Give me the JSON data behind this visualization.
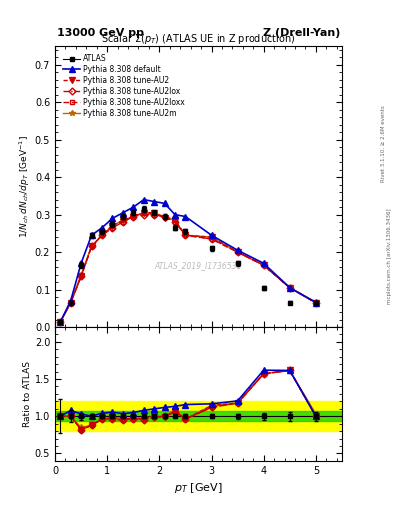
{
  "title_top_left": "13000 GeV pp",
  "title_top_right": "Z (Drell-Yan)",
  "plot_title": "Scalar $\\Sigma(p_T)$ (ATLAS UE in Z production)",
  "watermark": "ATLAS_2019_I1736531",
  "right_label": "Rivet 3.1.10, ≥ 2.6M events",
  "right_label2": "mcplots.cern.ch [arXiv:1306.3436]",
  "ylabel_main": "$1/N_{ch}\\,dN_{ch}/dp_T$ [GeV$^{-1}$]",
  "ylabel_ratio": "Ratio to ATLAS",
  "xlabel": "$p_T$ [GeV]",
  "xlim": [
    0,
    5.5
  ],
  "ylim_main": [
    0,
    0.75
  ],
  "ylim_ratio": [
    0.4,
    2.2
  ],
  "pt_data": [
    0.1,
    0.3,
    0.5,
    0.7,
    0.9,
    1.1,
    1.3,
    1.5,
    1.7,
    1.9,
    2.1,
    2.3,
    2.5,
    3.0,
    3.5,
    4.0,
    4.5,
    5.0
  ],
  "atlas_y": [
    0.013,
    0.065,
    0.165,
    0.245,
    0.255,
    0.275,
    0.295,
    0.305,
    0.315,
    0.305,
    0.295,
    0.265,
    0.255,
    0.21,
    0.17,
    0.105,
    0.065,
    0.065
  ],
  "atlas_yerr": [
    0.003,
    0.005,
    0.008,
    0.007,
    0.007,
    0.007,
    0.007,
    0.007,
    0.007,
    0.007,
    0.007,
    0.007,
    0.007,
    0.006,
    0.006,
    0.005,
    0.004,
    0.004
  ],
  "pythia_default_y": [
    0.013,
    0.07,
    0.17,
    0.245,
    0.265,
    0.29,
    0.305,
    0.32,
    0.34,
    0.335,
    0.33,
    0.3,
    0.295,
    0.245,
    0.205,
    0.17,
    0.105,
    0.065
  ],
  "pythia_AU2_y": [
    0.013,
    0.065,
    0.135,
    0.215,
    0.245,
    0.27,
    0.285,
    0.295,
    0.305,
    0.305,
    0.29,
    0.285,
    0.245,
    0.24,
    0.2,
    0.165,
    0.105,
    0.065
  ],
  "pythia_AU2lox_y": [
    0.013,
    0.065,
    0.135,
    0.215,
    0.245,
    0.265,
    0.28,
    0.295,
    0.3,
    0.3,
    0.295,
    0.28,
    0.245,
    0.235,
    0.2,
    0.165,
    0.105,
    0.065
  ],
  "pythia_AU2loxx_y": [
    0.013,
    0.065,
    0.135,
    0.215,
    0.245,
    0.265,
    0.28,
    0.295,
    0.305,
    0.3,
    0.295,
    0.28,
    0.245,
    0.235,
    0.2,
    0.165,
    0.105,
    0.065
  ],
  "pythia_AU2m_y": [
    0.013,
    0.065,
    0.14,
    0.215,
    0.245,
    0.27,
    0.285,
    0.295,
    0.305,
    0.305,
    0.295,
    0.285,
    0.245,
    0.24,
    0.2,
    0.165,
    0.105,
    0.067
  ],
  "color_default": "#0000cc",
  "color_AU2": "#cc0000",
  "color_AU2lox": "#cc0000",
  "color_AU2loxx": "#cc0000",
  "color_AU2m": "#bb6600",
  "green_band": 0.07,
  "yellow_band": 0.2,
  "yticks_main": [
    0.0,
    0.1,
    0.2,
    0.3,
    0.4,
    0.5,
    0.6,
    0.7
  ],
  "xticks": [
    0,
    1,
    2,
    3,
    4,
    5
  ],
  "yticks_ratio": [
    0.5,
    1.0,
    1.5,
    2.0
  ]
}
